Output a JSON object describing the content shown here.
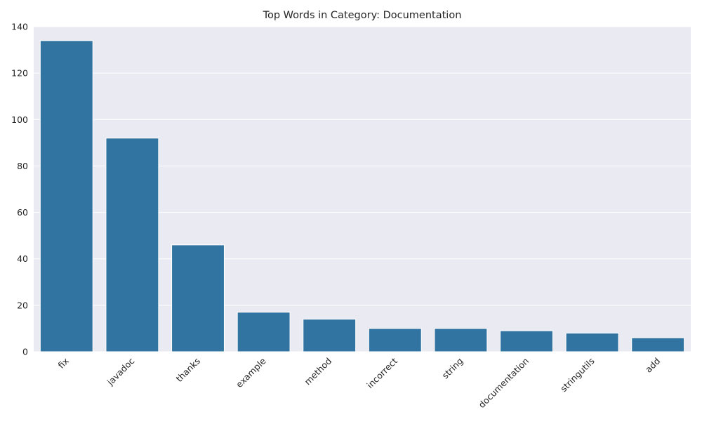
{
  "chart_data": {
    "type": "bar",
    "title": "Top Words in Category: Documentation",
    "xlabel": "",
    "ylabel": "",
    "categories": [
      "fix",
      "javadoc",
      "thanks",
      "example",
      "method",
      "incorrect",
      "string",
      "documentation",
      "stringutils",
      "add"
    ],
    "values": [
      134,
      92,
      46,
      17,
      14,
      10,
      10,
      9,
      8,
      6
    ],
    "ylim": [
      0,
      140
    ],
    "yticks": [
      0,
      20,
      40,
      60,
      80,
      100,
      120,
      140
    ],
    "grid": true,
    "legend": "none"
  },
  "colors": {
    "bar": "#3274a1",
    "plot_background": "#eaeaf2",
    "grid": "#ffffff"
  }
}
